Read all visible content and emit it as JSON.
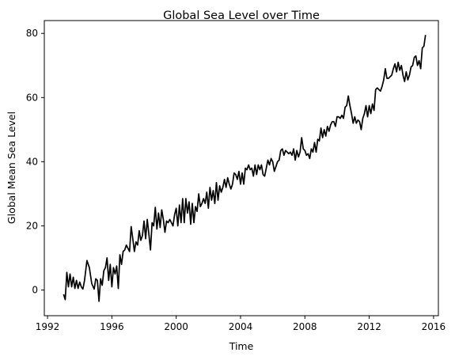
{
  "chart_data": {
    "type": "line",
    "title": "Global Sea Level over Time",
    "xlabel": "Time",
    "ylabel": "Global Mean Sea Level",
    "xlim": [
      1991.8,
      2016.3
    ],
    "ylim": [
      -8,
      84
    ],
    "x_ticks": [
      1992,
      1996,
      2000,
      2004,
      2008,
      2012,
      2016
    ],
    "y_ticks": [
      0,
      20,
      40,
      60,
      80
    ],
    "grid": false,
    "legend": "none",
    "series": [
      {
        "color": "#000000",
        "points": [
          [
            1993.0,
            -1.3
          ],
          [
            1993.1,
            -3.0
          ],
          [
            1993.2,
            5.5
          ],
          [
            1993.3,
            1.0
          ],
          [
            1993.4,
            5.0
          ],
          [
            1993.5,
            1.0
          ],
          [
            1993.6,
            4.0
          ],
          [
            1993.7,
            0.5
          ],
          [
            1993.8,
            3.0
          ],
          [
            1993.9,
            0.5
          ],
          [
            1994.0,
            2.5
          ],
          [
            1994.1,
            1.0
          ],
          [
            1994.2,
            0.3
          ],
          [
            1994.3,
            3.0
          ],
          [
            1994.45,
            9.2
          ],
          [
            1994.6,
            7.0
          ],
          [
            1994.75,
            2.0
          ],
          [
            1994.9,
            0.3
          ],
          [
            1995.0,
            3.5
          ],
          [
            1995.1,
            3.0
          ],
          [
            1995.2,
            -3.5
          ],
          [
            1995.3,
            3.5
          ],
          [
            1995.4,
            1.5
          ],
          [
            1995.5,
            6.0
          ],
          [
            1995.6,
            7.0
          ],
          [
            1995.7,
            10.0
          ],
          [
            1995.8,
            3.0
          ],
          [
            1995.9,
            8.0
          ],
          [
            1996.0,
            1.0
          ],
          [
            1996.1,
            7.0
          ],
          [
            1996.2,
            5.0
          ],
          [
            1996.3,
            7.5
          ],
          [
            1996.4,
            0.5
          ],
          [
            1996.5,
            11.0
          ],
          [
            1996.6,
            8.0
          ],
          [
            1996.7,
            12.0
          ],
          [
            1996.8,
            12.5
          ],
          [
            1996.9,
            14.0
          ],
          [
            1997.0,
            13.0
          ],
          [
            1997.1,
            12.0
          ],
          [
            1997.2,
            19.8
          ],
          [
            1997.3,
            16.0
          ],
          [
            1997.4,
            12.0
          ],
          [
            1997.5,
            15.0
          ],
          [
            1997.6,
            14.0
          ],
          [
            1997.7,
            18.5
          ],
          [
            1997.8,
            15.5
          ],
          [
            1997.9,
            17.0
          ],
          [
            1998.0,
            21.5
          ],
          [
            1998.1,
            16.0
          ],
          [
            1998.2,
            22.0
          ],
          [
            1998.3,
            17.5
          ],
          [
            1998.4,
            12.5
          ],
          [
            1998.5,
            21.0
          ],
          [
            1998.6,
            20.0
          ],
          [
            1998.7,
            25.8
          ],
          [
            1998.8,
            19.0
          ],
          [
            1998.9,
            24.0
          ],
          [
            1999.0,
            19.5
          ],
          [
            1999.1,
            25.0
          ],
          [
            1999.2,
            22.0
          ],
          [
            1999.3,
            18.0
          ],
          [
            1999.4,
            21.5
          ],
          [
            1999.5,
            21.0
          ],
          [
            1999.6,
            22.0
          ],
          [
            1999.7,
            21.0
          ],
          [
            1999.8,
            20.0
          ],
          [
            1999.9,
            23.5
          ],
          [
            2000.0,
            25.5
          ],
          [
            2000.1,
            20.0
          ],
          [
            2000.2,
            26.5
          ],
          [
            2000.3,
            21.0
          ],
          [
            2000.4,
            28.5
          ],
          [
            2000.5,
            21.0
          ],
          [
            2000.6,
            28.5
          ],
          [
            2000.7,
            24.0
          ],
          [
            2000.8,
            27.5
          ],
          [
            2000.9,
            20.5
          ],
          [
            2001.0,
            27.0
          ],
          [
            2001.1,
            21.0
          ],
          [
            2001.2,
            26.0
          ],
          [
            2001.3,
            24.5
          ],
          [
            2001.4,
            30.0
          ],
          [
            2001.5,
            26.0
          ],
          [
            2001.6,
            27.0
          ],
          [
            2001.7,
            28.5
          ],
          [
            2001.8,
            27.0
          ],
          [
            2001.9,
            30.5
          ],
          [
            2002.0,
            25.5
          ],
          [
            2002.1,
            32.0
          ],
          [
            2002.2,
            28.0
          ],
          [
            2002.3,
            31.0
          ],
          [
            2002.4,
            27.0
          ],
          [
            2002.5,
            33.5
          ],
          [
            2002.6,
            28.0
          ],
          [
            2002.7,
            32.5
          ],
          [
            2002.8,
            30.5
          ],
          [
            2002.9,
            32.0
          ],
          [
            2003.0,
            34.5
          ],
          [
            2003.1,
            32.0
          ],
          [
            2003.2,
            35.0
          ],
          [
            2003.3,
            33.0
          ],
          [
            2003.4,
            31.5
          ],
          [
            2003.5,
            33.0
          ],
          [
            2003.6,
            36.5
          ],
          [
            2003.7,
            36.0
          ],
          [
            2003.8,
            34.5
          ],
          [
            2003.9,
            37.0
          ],
          [
            2004.0,
            33.0
          ],
          [
            2004.1,
            36.5
          ],
          [
            2004.2,
            33.0
          ],
          [
            2004.3,
            38.0
          ],
          [
            2004.4,
            37.5
          ],
          [
            2004.5,
            39.0
          ],
          [
            2004.6,
            37.5
          ],
          [
            2004.7,
            38.0
          ],
          [
            2004.8,
            35.5
          ],
          [
            2004.9,
            39.0
          ],
          [
            2005.0,
            36.0
          ],
          [
            2005.1,
            39.0
          ],
          [
            2005.2,
            37.5
          ],
          [
            2005.3,
            39.0
          ],
          [
            2005.4,
            36.0
          ],
          [
            2005.5,
            35.5
          ],
          [
            2005.6,
            38.0
          ],
          [
            2005.7,
            40.5
          ],
          [
            2005.8,
            39.0
          ],
          [
            2005.9,
            41.0
          ],
          [
            2006.0,
            40.0
          ],
          [
            2006.1,
            37.0
          ],
          [
            2006.2,
            38.5
          ],
          [
            2006.3,
            40.0
          ],
          [
            2006.4,
            40.5
          ],
          [
            2006.5,
            43.5
          ],
          [
            2006.6,
            44.0
          ],
          [
            2006.7,
            42.0
          ],
          [
            2006.8,
            43.5
          ],
          [
            2006.9,
            43.0
          ],
          [
            2007.0,
            42.5
          ],
          [
            2007.1,
            43.0
          ],
          [
            2007.2,
            42.0
          ],
          [
            2007.3,
            44.0
          ],
          [
            2007.4,
            40.5
          ],
          [
            2007.5,
            43.5
          ],
          [
            2007.6,
            41.5
          ],
          [
            2007.7,
            43.0
          ],
          [
            2007.8,
            47.5
          ],
          [
            2007.9,
            44.0
          ],
          [
            2008.0,
            43.5
          ],
          [
            2008.1,
            42.0
          ],
          [
            2008.2,
            42.5
          ],
          [
            2008.3,
            41.0
          ],
          [
            2008.4,
            44.0
          ],
          [
            2008.5,
            43.0
          ],
          [
            2008.6,
            46.0
          ],
          [
            2008.7,
            43.0
          ],
          [
            2008.8,
            47.0
          ],
          [
            2008.9,
            46.5
          ],
          [
            2009.0,
            50.5
          ],
          [
            2009.1,
            47.5
          ],
          [
            2009.2,
            50.0
          ],
          [
            2009.3,
            48.0
          ],
          [
            2009.4,
            51.0
          ],
          [
            2009.5,
            49.5
          ],
          [
            2009.6,
            51.5
          ],
          [
            2009.7,
            52.5
          ],
          [
            2009.8,
            52.5
          ],
          [
            2009.9,
            51.0
          ],
          [
            2010.0,
            54.0
          ],
          [
            2010.1,
            54.0
          ],
          [
            2010.2,
            53.5
          ],
          [
            2010.3,
            54.5
          ],
          [
            2010.4,
            53.5
          ],
          [
            2010.5,
            57.0
          ],
          [
            2010.6,
            57.5
          ],
          [
            2010.7,
            60.5
          ],
          [
            2010.8,
            57.5
          ],
          [
            2010.9,
            55.0
          ],
          [
            2011.0,
            52.0
          ],
          [
            2011.1,
            54.0
          ],
          [
            2011.2,
            52.0
          ],
          [
            2011.3,
            53.0
          ],
          [
            2011.4,
            52.5
          ],
          [
            2011.5,
            50.0
          ],
          [
            2011.6,
            53.5
          ],
          [
            2011.7,
            55.0
          ],
          [
            2011.8,
            57.5
          ],
          [
            2011.9,
            54.0
          ],
          [
            2012.0,
            57.5
          ],
          [
            2012.1,
            55.0
          ],
          [
            2012.2,
            58.0
          ],
          [
            2012.3,
            56.0
          ],
          [
            2012.4,
            62.5
          ],
          [
            2012.5,
            63.0
          ],
          [
            2012.6,
            62.5
          ],
          [
            2012.7,
            62.0
          ],
          [
            2012.8,
            63.5
          ],
          [
            2012.9,
            65.5
          ],
          [
            2013.0,
            69.0
          ],
          [
            2013.1,
            66.0
          ],
          [
            2013.2,
            66.0
          ],
          [
            2013.3,
            66.5
          ],
          [
            2013.4,
            67.0
          ],
          [
            2013.5,
            69.0
          ],
          [
            2013.6,
            70.5
          ],
          [
            2013.7,
            68.0
          ],
          [
            2013.8,
            71.0
          ],
          [
            2013.9,
            68.5
          ],
          [
            2014.0,
            70.0
          ],
          [
            2014.1,
            67.0
          ],
          [
            2014.2,
            65.0
          ],
          [
            2014.3,
            68.0
          ],
          [
            2014.4,
            65.5
          ],
          [
            2014.5,
            67.0
          ],
          [
            2014.6,
            69.5
          ],
          [
            2014.7,
            70.0
          ],
          [
            2014.8,
            72.5
          ],
          [
            2014.9,
            73.0
          ],
          [
            2015.0,
            70.0
          ],
          [
            2015.1,
            71.5
          ],
          [
            2015.2,
            69.0
          ],
          [
            2015.3,
            75.5
          ],
          [
            2015.4,
            76.0
          ],
          [
            2015.5,
            79.5
          ]
        ]
      }
    ]
  }
}
